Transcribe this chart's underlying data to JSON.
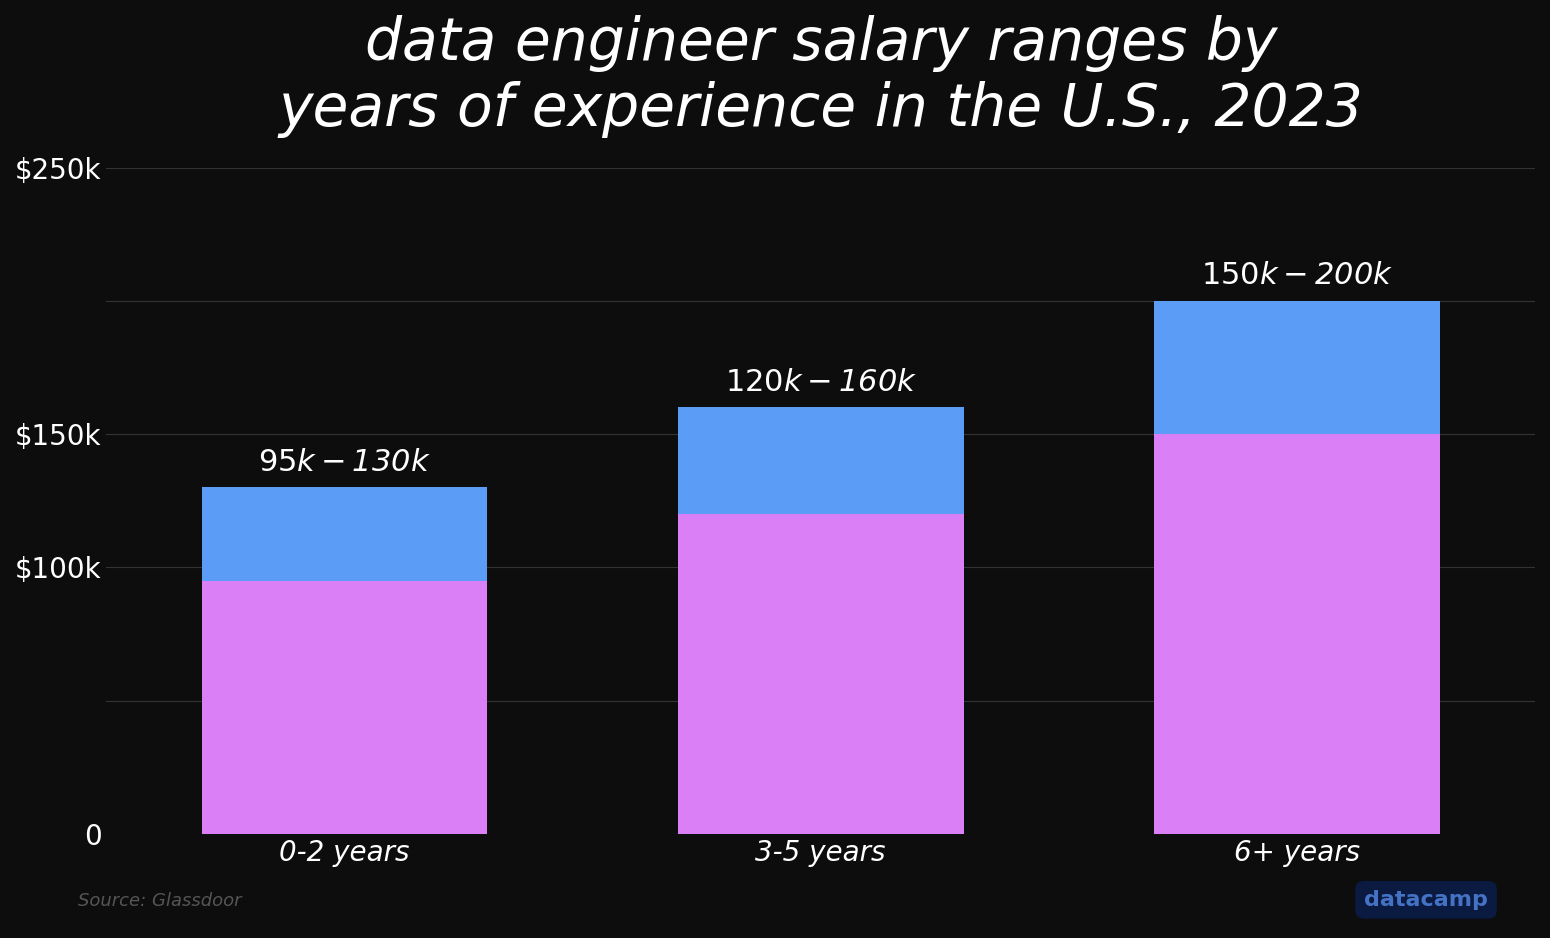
{
  "title": "data engineer salary ranges by\nyears of experience in the U.S., 2023",
  "categories": [
    "0-2 years",
    "3-5 years",
    "6+ years"
  ],
  "low_values": [
    95000,
    120000,
    150000
  ],
  "high_values": [
    130000,
    160000,
    200000
  ],
  "bar_bottom_color": "#da7ff5",
  "bar_top_color": "#5b9cf6",
  "background_color": "#0d0d0d",
  "text_color": "#ffffff",
  "title_fontsize": 42,
  "tick_fontsize": 20,
  "annotation_fontsize": 22,
  "ylim": [
    0,
    250000
  ],
  "yticks": [
    0,
    50000,
    100000,
    150000,
    200000,
    250000
  ],
  "ytick_labels": [
    "0",
    "",
    "$100k",
    "$150k",
    "",
    "$250k"
  ],
  "grid_color": "#333333",
  "bar_width": 0.6,
  "annotation_labels": [
    "$95k-$130k",
    "$120k-$160k",
    "$150k-$200k"
  ],
  "source_text": "Source: Glassdoor",
  "logo_text": "datacamp"
}
